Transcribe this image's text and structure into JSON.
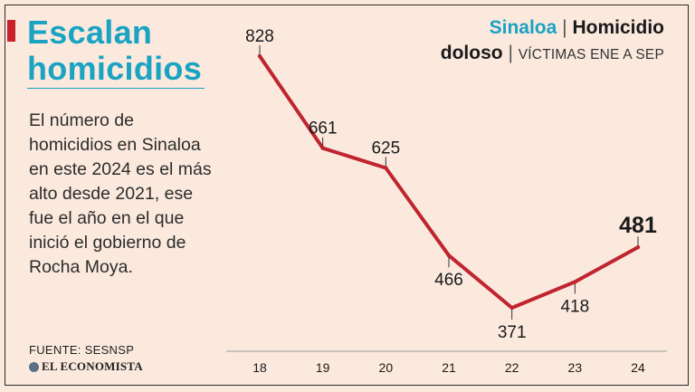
{
  "headline": {
    "line1": "Escalan",
    "line2": "homicidios"
  },
  "body": "El número de homicidios en Sinaloa en este 2024 es el más alto desde 2021, ese fue el año en el que inició el gobierno de Rocha Moya.",
  "footer": {
    "source": "FUENTE: SESNSP",
    "logo": "EL ECONOMISTA"
  },
  "chart_header": {
    "state": "Sinaloa",
    "sep1": "|",
    "topic_a": "Homicidio",
    "topic_b": "doloso",
    "sep2": "|",
    "subtitle": "VÍCTIMAS ENE A SEP"
  },
  "colors": {
    "line": "#c0242f",
    "accent": "#1aa3c2",
    "background": "#fbe9de"
  },
  "chart_data": {
    "type": "line",
    "title": "Sinaloa | Homicidio doloso | VÍCTIMAS ENE A SEP",
    "xlabel": "",
    "ylabel": "",
    "categories": [
      "18",
      "19",
      "20",
      "21",
      "22",
      "23",
      "24"
    ],
    "series": [
      {
        "name": "Víctimas de homicidio doloso (ene a sep)",
        "values": [
          828,
          661,
          625,
          466,
          371,
          418,
          481
        ]
      }
    ],
    "highlight_index": 6,
    "label_positions": [
      "above",
      "above",
      "above",
      "below",
      "below",
      "below",
      "above"
    ],
    "ylim": [
      300,
      860
    ],
    "grid": false,
    "legend": "none"
  }
}
